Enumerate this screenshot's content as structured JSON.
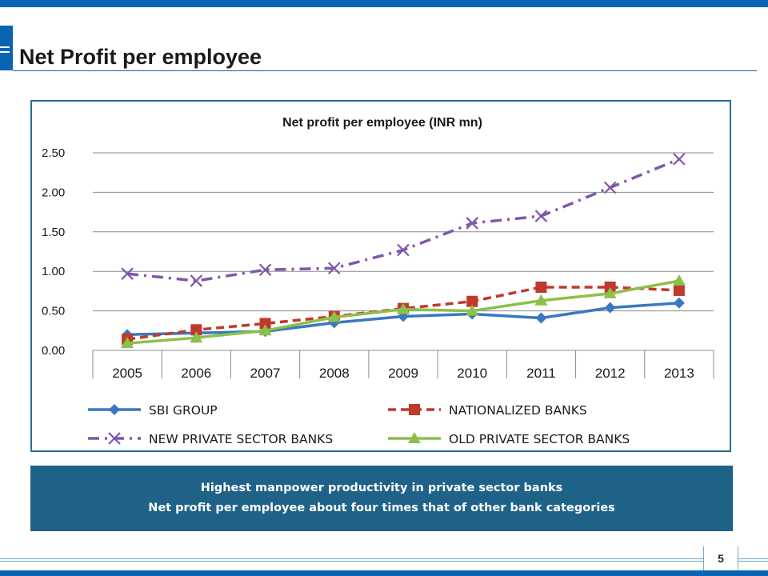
{
  "page": {
    "title": "Net Profit per employee",
    "page_number": "5"
  },
  "callout": {
    "line1": "Highest manpower productivity in private sector banks",
    "line2": "Net profit per employee about four times that of other bank categories"
  },
  "colors": {
    "accent": "#0a64b4",
    "callout_bg": "#1f6288"
  },
  "chart_data": {
    "type": "line",
    "title": "Net profit per employee (INR mn)",
    "categories": [
      "2005",
      "2006",
      "2007",
      "2008",
      "2009",
      "2010",
      "2011",
      "2012",
      "2013"
    ],
    "y_ticks": [
      "0.00",
      "0.50",
      "1.00",
      "1.50",
      "2.00",
      "2.50"
    ],
    "ylim": [
      0,
      2.5
    ],
    "grid": true,
    "legend_position": "bottom",
    "series": [
      {
        "name": "SBI GROUP",
        "values": [
          0.2,
          0.22,
          0.24,
          0.35,
          0.43,
          0.46,
          0.41,
          0.54,
          0.6
        ],
        "color": "#3a78c0",
        "marker": "diamond",
        "dash": "solid"
      },
      {
        "name": "NATIONALIZED BANKS",
        "values": [
          0.14,
          0.26,
          0.34,
          0.43,
          0.53,
          0.62,
          0.8,
          0.8,
          0.76
        ],
        "color": "#c0392b",
        "marker": "square",
        "dash": "dashed"
      },
      {
        "name": "NEW PRIVATE SECTOR BANKS",
        "values": [
          0.97,
          0.88,
          1.02,
          1.04,
          1.27,
          1.61,
          1.7,
          2.06,
          2.42
        ],
        "color": "#7e58a8",
        "marker": "x",
        "dash": "dashdot"
      },
      {
        "name": "OLD PRIVATE SECTOR BANKS",
        "values": [
          0.09,
          0.16,
          0.25,
          0.42,
          0.52,
          0.5,
          0.63,
          0.72,
          0.88
        ],
        "color": "#8cc04a",
        "marker": "triangle",
        "dash": "solid"
      }
    ]
  }
}
